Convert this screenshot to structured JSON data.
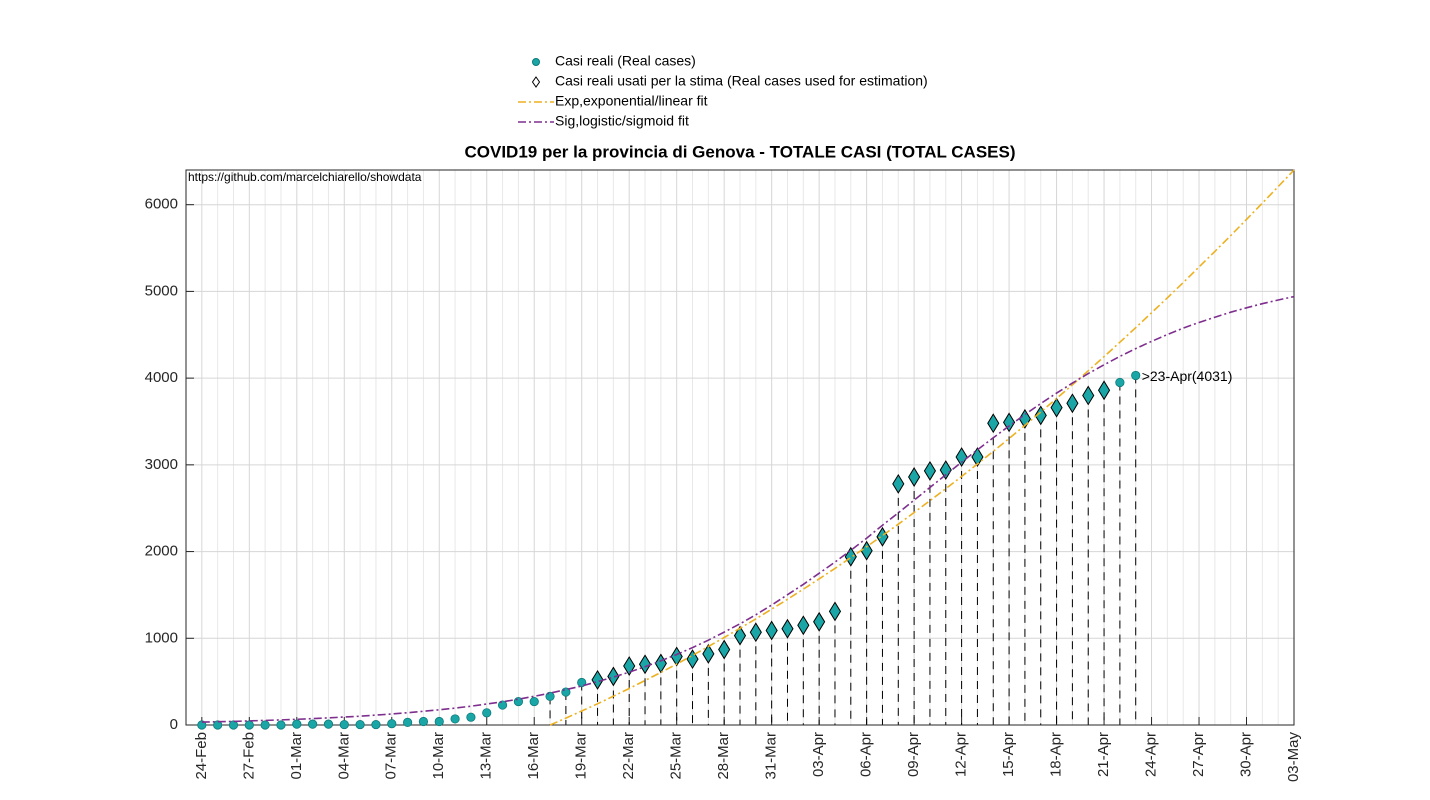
{
  "chart_data": {
    "type": "line",
    "title": "COVID19 per la provincia di Genova - TOTALE CASI (TOTAL CASES)",
    "annotations": [
      "https://github.com/marcelchiarello/showdata",
      ">23-Apr(4031)"
    ],
    "categories": [
      null,
      "24-Feb",
      null,
      null,
      "27-Feb",
      null,
      null,
      "01-Mar",
      null,
      null,
      "04-Mar",
      null,
      null,
      "07-Mar",
      null,
      null,
      "10-Mar",
      null,
      null,
      "13-Mar",
      null,
      null,
      "16-Mar",
      null,
      null,
      "19-Mar",
      null,
      null,
      "22-Mar",
      null,
      null,
      "25-Mar",
      null,
      null,
      "28-Mar",
      null,
      null,
      "31-Mar",
      null,
      null,
      "03-Apr",
      null,
      null,
      "06-Apr",
      null,
      null,
      "09-Apr",
      null,
      null,
      "12-Apr",
      null,
      null,
      "15-Apr",
      null,
      null,
      "18-Apr",
      null,
      null,
      "21-Apr",
      null,
      null,
      "24-Apr",
      null,
      null,
      "27-Apr",
      null,
      null,
      "30-Apr",
      null,
      null,
      "03-May"
    ],
    "series": [
      {
        "name": "Casi reali (Real cases)",
        "color": "#1aa6a6",
        "style": "circle",
        "values": [
          null,
          0,
          0,
          0,
          0,
          0,
          0,
          10,
          10,
          10,
          5,
          5,
          5,
          15,
          30,
          40,
          40,
          70,
          90,
          140,
          230,
          270,
          270,
          330,
          380,
          490,
          520,
          560,
          680,
          700,
          710,
          790,
          760,
          820,
          870,
          1030,
          1070,
          1090,
          1110,
          1150,
          1190,
          1310,
          1940,
          2010,
          2170,
          2780,
          2860,
          2930,
          2940,
          3090,
          3090,
          3480,
          3490,
          3530,
          3570,
          3660,
          3710,
          3800,
          3860,
          3950,
          4031,
          null,
          null,
          null,
          null,
          null,
          null,
          null,
          null,
          null,
          null
        ]
      },
      {
        "name": "Casi reali usati per la stima (Real cases used for estimation)",
        "color": "#1aa6a6",
        "style": "diamond",
        "values": [
          null,
          null,
          null,
          null,
          null,
          null,
          null,
          null,
          null,
          null,
          null,
          null,
          null,
          null,
          null,
          null,
          null,
          null,
          null,
          null,
          null,
          null,
          null,
          null,
          null,
          null,
          520,
          560,
          680,
          700,
          710,
          790,
          760,
          820,
          870,
          1030,
          1070,
          1090,
          1110,
          1150,
          1190,
          1310,
          1940,
          2010,
          2170,
          2780,
          2860,
          2930,
          2940,
          3090,
          3090,
          3480,
          3490,
          3530,
          3570,
          3660,
          3710,
          3800,
          3860,
          null,
          null,
          null,
          null,
          null,
          null,
          null,
          null,
          null,
          null,
          null,
          null
        ]
      },
      {
        "name": "Exp,exponential/linear fit",
        "color": "#edb120",
        "style": "dashdot",
        "values": [
          null,
          null,
          null,
          null,
          null,
          null,
          null,
          null,
          null,
          null,
          null,
          null,
          null,
          null,
          null,
          null,
          null,
          null,
          null,
          null,
          null,
          null,
          null,
          0,
          79,
          161,
          245,
          332,
          421,
          513,
          607,
          704,
          803,
          905,
          1009,
          1115,
          1224,
          1336,
          1450,
          1566,
          1685,
          1806,
          1930,
          2056,
          2185,
          2316,
          2450,
          2586,
          2725,
          2866,
          3010,
          3156,
          3304,
          3455,
          3609,
          3765,
          3923,
          4084,
          4248,
          4414,
          4582,
          4753,
          4926,
          5102,
          5281,
          5461,
          5644,
          5830,
          6017,
          6208,
          6400
        ]
      },
      {
        "name": "Sig,logistic/sigmoid fit",
        "color": "#7e2f8e",
        "style": "dashdot",
        "values": [
          null,
          34,
          38,
          42,
          47,
          53,
          59,
          66,
          74,
          82,
          92,
          102,
          114,
          127,
          142,
          158,
          175,
          195,
          217,
          242,
          268,
          298,
          331,
          368,
          408,
          450,
          500,
          552,
          609,
          672,
          740,
          813,
          892,
          978,
          1071,
          1167,
          1271,
          1384,
          1502,
          1621,
          1749,
          1879,
          2015,
          2154,
          2304,
          2446,
          2592,
          2739,
          2885,
          3030,
          3174,
          3313,
          3448,
          3581,
          3706,
          3827,
          3943,
          4052,
          4154,
          4250,
          4341,
          4424,
          4503,
          4577,
          4641,
          4703,
          4760,
          4811,
          4858,
          4901,
          4940
        ]
      }
    ],
    "ylim": [
      0,
      6400
    ],
    "yticks": [
      0,
      1000,
      2000,
      3000,
      4000,
      5000,
      6000
    ],
    "grid": true,
    "legend": "top"
  }
}
